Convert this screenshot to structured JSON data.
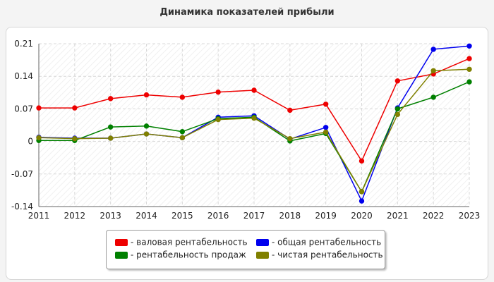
{
  "chart_data": {
    "type": "line",
    "title": "Динамика показателей прибыли",
    "xlabel": "",
    "ylabel": "",
    "x": [
      "2011",
      "2012",
      "2013",
      "2014",
      "2015",
      "2016",
      "2017",
      "2018",
      "2019",
      "2020",
      "2021",
      "2022",
      "2023"
    ],
    "ylim": [
      -0.14,
      0.21
    ],
    "yticks": [
      0.21,
      0.14,
      0.07,
      0,
      -0.07,
      -0.14
    ],
    "ytick_labels": [
      "0.21",
      "0.14",
      "0.07",
      "0",
      "-0.07",
      "-0.14"
    ],
    "grid": true,
    "legend_position": "bottom",
    "series": [
      {
        "name": "валовая рентабельность",
        "color": "#ee0000",
        "values": [
          0.072,
          0.072,
          0.092,
          0.1,
          0.095,
          0.106,
          0.11,
          0.067,
          0.08,
          -0.042,
          0.13,
          0.145,
          0.178
        ]
      },
      {
        "name": "общая рентабельность",
        "color": "#0000ee",
        "values": [
          0.009,
          0.007,
          0.007,
          0.016,
          0.008,
          0.052,
          0.055,
          0.005,
          0.03,
          -0.128,
          0.072,
          0.198,
          0.205
        ]
      },
      {
        "name": "рентабельность продаж",
        "color": "#008000",
        "values": [
          0.002,
          0.002,
          0.031,
          0.033,
          0.021,
          0.049,
          0.052,
          0.001,
          0.017,
          -0.108,
          0.07,
          0.095,
          0.128
        ]
      },
      {
        "name": "чистая рентабельность",
        "color": "#808000",
        "values": [
          0.008,
          0.006,
          0.007,
          0.016,
          0.008,
          0.047,
          0.05,
          0.006,
          0.02,
          -0.108,
          0.058,
          0.152,
          0.155
        ]
      }
    ]
  }
}
